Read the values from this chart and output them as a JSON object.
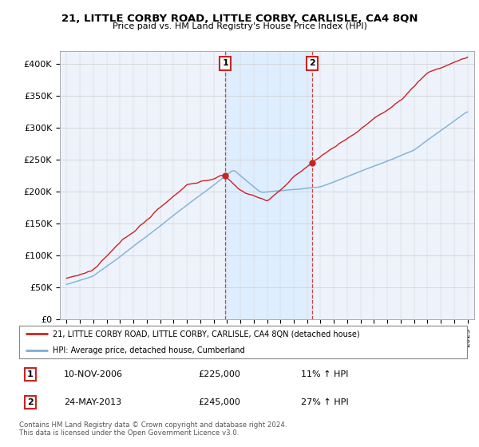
{
  "title": "21, LITTLE CORBY ROAD, LITTLE CORBY, CARLISLE, CA4 8QN",
  "subtitle": "Price paid vs. HM Land Registry's House Price Index (HPI)",
  "hpi_label": "HPI: Average price, detached house, Cumberland",
  "property_label": "21, LITTLE CORBY ROAD, LITTLE CORBY, CARLISLE, CA4 8QN (detached house)",
  "red_color": "#cc2222",
  "blue_color": "#7aaed6",
  "shade_color": "#ddeeff",
  "annotation_box_color": "#cc2222",
  "background_color": "#eef3fb",
  "sale1_date": "10-NOV-2006",
  "sale1_price": 225000,
  "sale1_hpi_pct": "11%",
  "sale1_year": 2006.87,
  "sale2_date": "24-MAY-2013",
  "sale2_price": 245000,
  "sale2_hpi_pct": "27%",
  "sale2_year": 2013.38,
  "footer": "Contains HM Land Registry data © Crown copyright and database right 2024.\nThis data is licensed under the Open Government Licence v3.0.",
  "ylim_min": 0,
  "ylim_max": 420000,
  "yticks": [
    0,
    50000,
    100000,
    150000,
    200000,
    250000,
    300000,
    350000,
    400000
  ],
  "ytick_labels": [
    "£0",
    "£50K",
    "£100K",
    "£150K",
    "£200K",
    "£250K",
    "£300K",
    "£350K",
    "£400K"
  ],
  "xmin": 1994.5,
  "xmax": 2025.5
}
